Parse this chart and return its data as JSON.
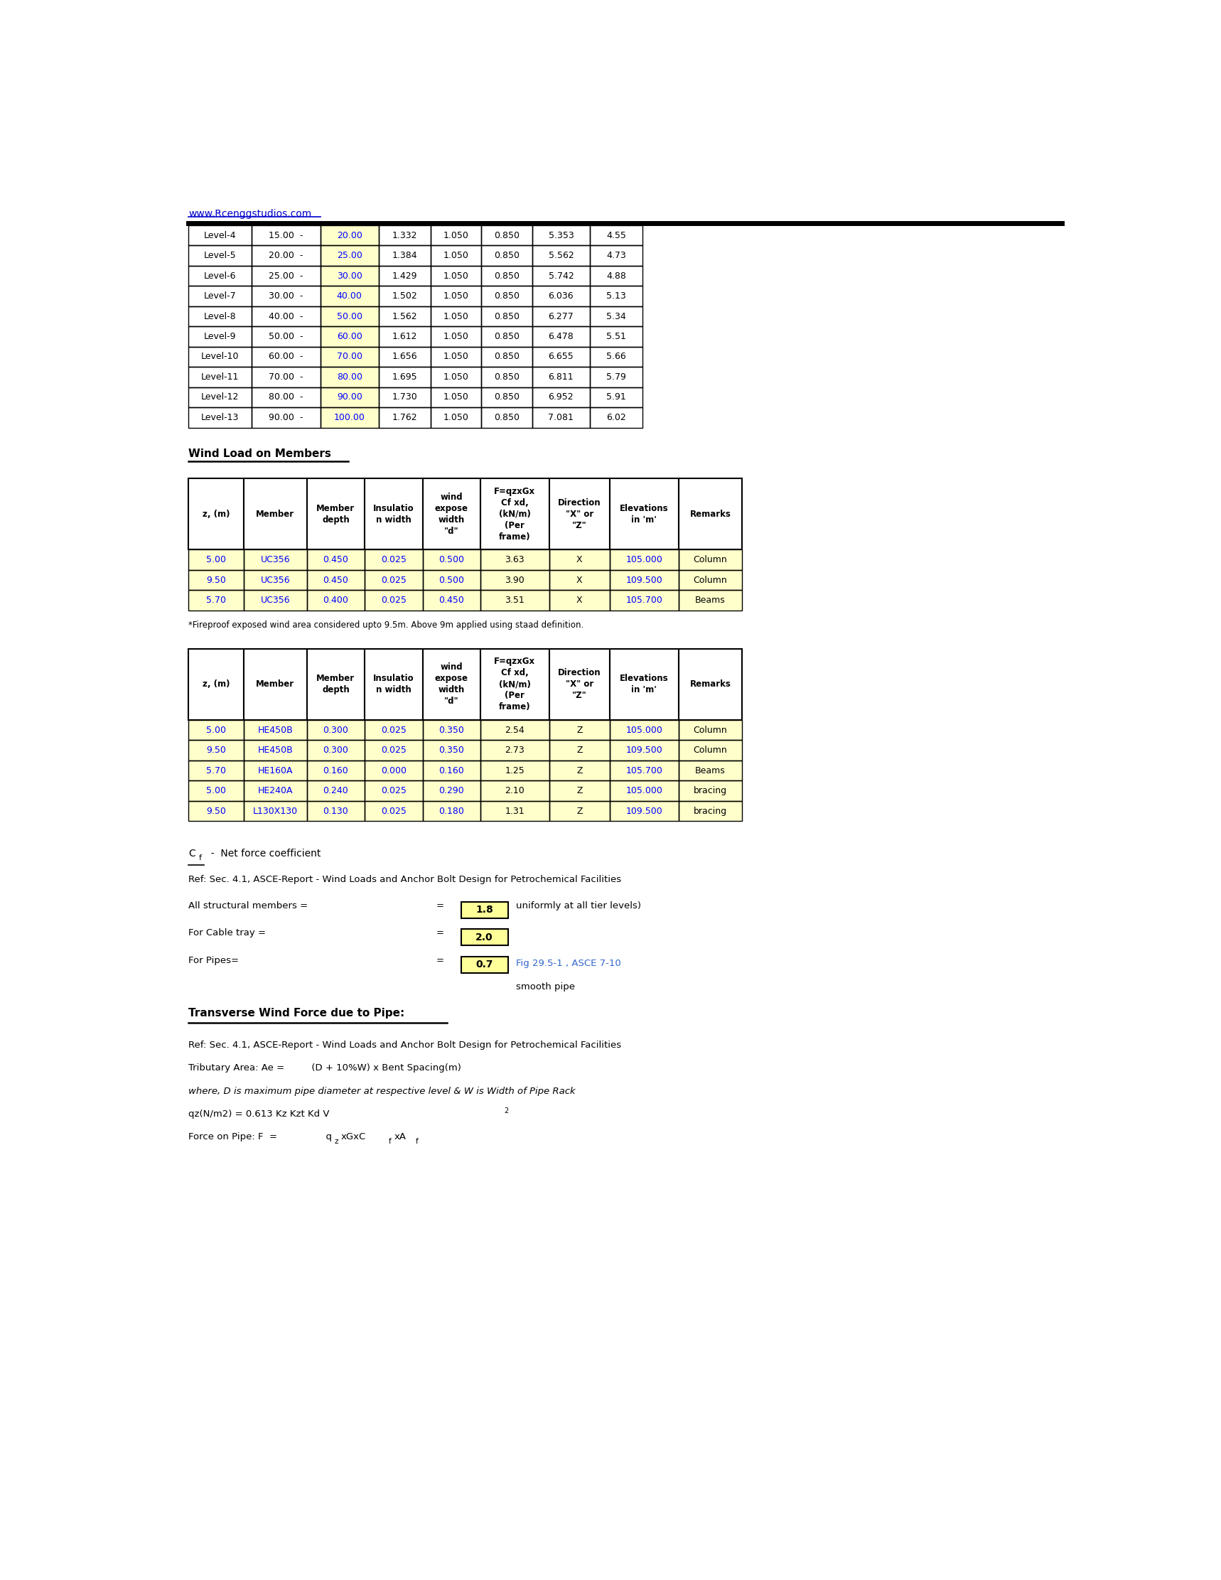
{
  "website": "www.Rcenggstudios.com",
  "table1_rows": [
    [
      "Level-4",
      "15.00  -",
      "20.00",
      "1.332",
      "1.050",
      "0.850",
      "5.353",
      "4.55"
    ],
    [
      "Level-5",
      "20.00  -",
      "25.00",
      "1.384",
      "1.050",
      "0.850",
      "5.562",
      "4.73"
    ],
    [
      "Level-6",
      "25.00  -",
      "30.00",
      "1.429",
      "1.050",
      "0.850",
      "5.742",
      "4.88"
    ],
    [
      "Level-7",
      "30.00  -",
      "40.00",
      "1.502",
      "1.050",
      "0.850",
      "6.036",
      "5.13"
    ],
    [
      "Level-8",
      "40.00  -",
      "50.00",
      "1.562",
      "1.050",
      "0.850",
      "6.277",
      "5.34"
    ],
    [
      "Level-9",
      "50.00  -",
      "60.00",
      "1.612",
      "1.050",
      "0.850",
      "6.478",
      "5.51"
    ],
    [
      "Level-10",
      "60.00  -",
      "70.00",
      "1.656",
      "1.050",
      "0.850",
      "6.655",
      "5.66"
    ],
    [
      "Level-11",
      "70.00  -",
      "80.00",
      "1.695",
      "1.050",
      "0.850",
      "6.811",
      "5.79"
    ],
    [
      "Level-12",
      "80.00  -",
      "90.00",
      "1.730",
      "1.050",
      "0.850",
      "6.952",
      "5.91"
    ],
    [
      "Level-13",
      "90.00  -",
      "100.00",
      "1.762",
      "1.050",
      "0.850",
      "7.081",
      "6.02"
    ]
  ],
  "section2_title": "Wind Load on Members",
  "table2_headers": [
    "z, (m)",
    "Member",
    "Member\ndepth",
    "Insulatio\nn width",
    "wind\nexpose\nwidth\n\"d\"",
    "F=qzxGx\nCf xd,\n(kN/m)\n(Per\nframe)",
    "Direction\n\"X\" or\n\"Z\"",
    "Elevations\nin 'm'",
    "Remarks"
  ],
  "table2_rows": [
    [
      "5.00",
      "UC356",
      "0.450",
      "0.025",
      "0.500",
      "3.63",
      "X",
      "105.000",
      "Column"
    ],
    [
      "9.50",
      "UC356",
      "0.450",
      "0.025",
      "0.500",
      "3.90",
      "X",
      "109.500",
      "Column"
    ],
    [
      "5.70",
      "UC356",
      "0.400",
      "0.025",
      "0.450",
      "3.51",
      "X",
      "105.700",
      "Beams"
    ]
  ],
  "footnote": "*Fireproof exposed wind area considered upto 9.5m. Above 9m applied using staad definition.",
  "table3_rows": [
    [
      "5.00",
      "HE450B",
      "0.300",
      "0.025",
      "0.350",
      "2.54",
      "Z",
      "105.000",
      "Column"
    ],
    [
      "9.50",
      "HE450B",
      "0.300",
      "0.025",
      "0.350",
      "2.73",
      "Z",
      "109.500",
      "Column"
    ],
    [
      "5.70",
      "HE160A",
      "0.160",
      "0.000",
      "0.160",
      "1.25",
      "Z",
      "105.700",
      "Beams"
    ],
    [
      "5.00",
      "HE240A",
      "0.240",
      "0.025",
      "0.290",
      "2.10",
      "Z",
      "105.000",
      "bracing"
    ],
    [
      "9.50",
      "L130X130",
      "0.130",
      "0.025",
      "0.180",
      "1.31",
      "Z",
      "109.500",
      "bracing"
    ]
  ],
  "cf_desc": "  -  Net force coefficient",
  "ref1": "Ref: Sec. 4.1, ASCE-Report - Wind Loads and Anchor Bolt Design for Petrochemical Facilities",
  "line_struct": "All structural members =",
  "line_struct_val": "1.8",
  "line_struct_note": "uniformly at all tier levels)",
  "line_cable": "For Cable tray =",
  "line_cable_val": "2.0",
  "line_pipe": "For Pipes=",
  "line_pipe_val": "0.7",
  "line_pipe_note1": "Fig 29.5-1 , ASCE 7-10",
  "line_pipe_note2": "smooth pipe",
  "transverse_title": "Transverse Wind Force due to Pipe:",
  "ref2": "Ref: Sec. 4.1, ASCE-Report - Wind Loads and Anchor Bolt Design for Petrochemical Facilities",
  "trib_area": "Tributary Area: Ae =         (D + 10%W) x Bent Spacing(m)",
  "where_line": "where, D is maximum pipe diameter at respective level & W is Width of Pipe Rack",
  "qz_line": "qz(N/m2) = 0.613 Kz Kzt Kd V",
  "force_line": "Force on Pipe: F  =",
  "yellow_bg": "#FFFF99",
  "light_yellow_bg": "#FFFFCC",
  "blue_text": "#0000FF",
  "blue_link": "#0000CC",
  "black": "#000000"
}
